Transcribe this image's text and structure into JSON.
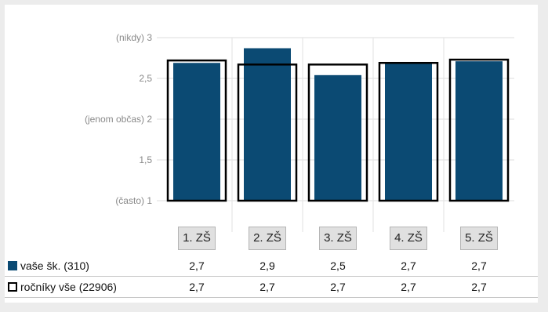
{
  "colors": {
    "series_fill": "#0b4a73",
    "series_outline": "#000000",
    "grid": "#dcdcdc"
  },
  "chart_data": {
    "type": "bar",
    "categories": [
      "1. ZŠ",
      "2. ZŠ",
      "3. ZŠ",
      "4. ZŠ",
      "5. ZŠ"
    ],
    "series": [
      {
        "name": "vaše šk. (310)",
        "style": "filled",
        "values": [
          2.69,
          2.87,
          2.54,
          2.7,
          2.71
        ],
        "display_values": [
          "2,7",
          "2,9",
          "2,5",
          "2,7",
          "2,7"
        ]
      },
      {
        "name": "ročníky vše (22906)",
        "style": "outline",
        "values": [
          2.72,
          2.67,
          2.67,
          2.69,
          2.73
        ],
        "display_values": [
          "2,7",
          "2,7",
          "2,7",
          "2,7",
          "2,7"
        ]
      }
    ],
    "yticks": [
      {
        "value": 1,
        "label": "(často) 1"
      },
      {
        "value": 1.5,
        "label": "1,5"
      },
      {
        "value": 2,
        "label": "(jenom občas) 2"
      },
      {
        "value": 2.5,
        "label": "2,5"
      },
      {
        "value": 3,
        "label": "(nikdy) 3"
      }
    ],
    "ylim": [
      1,
      3
    ],
    "grid": true,
    "legend": "table-below"
  }
}
